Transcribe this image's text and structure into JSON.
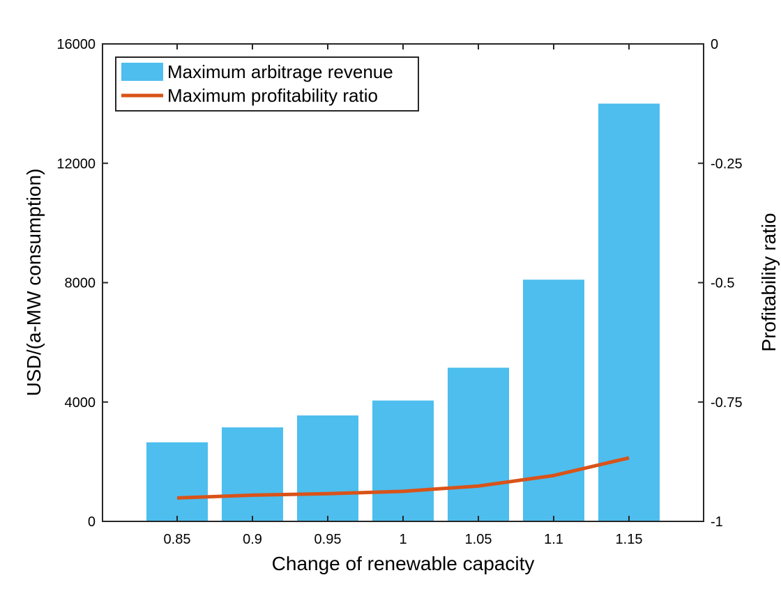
{
  "chart_data": {
    "type": "bar",
    "title": "",
    "xlabel": "Change of renewable capacity",
    "ylabel": "USD/(a-MW consumption)",
    "ylabel_right": "Profitability ratio",
    "categories": [
      "0.85",
      "0.9",
      "0.95",
      "1",
      "1.05",
      "1.1",
      "1.15"
    ],
    "ylim": [
      0,
      16000
    ],
    "ylim_right": [
      -1,
      0
    ],
    "yticks": [
      "0",
      "4000",
      "8000",
      "12000",
      "16000"
    ],
    "yticks_right": [
      "-1",
      "-0.75",
      "-0.5",
      "-0.25",
      "0"
    ],
    "grid": false,
    "legend_position": "top-left",
    "series": [
      {
        "name": "Maximum arbitrage revenue",
        "type": "bar",
        "axis": "left",
        "color": "#4DBEEE",
        "values": [
          2650,
          3150,
          3550,
          4050,
          5150,
          8100,
          14000
        ]
      },
      {
        "name": "Maximum profitability ratio",
        "type": "line",
        "axis": "right",
        "color": "#D95319",
        "values": [
          -0.951,
          -0.945,
          -0.942,
          -0.937,
          -0.926,
          -0.904,
          -0.867
        ]
      }
    ]
  }
}
